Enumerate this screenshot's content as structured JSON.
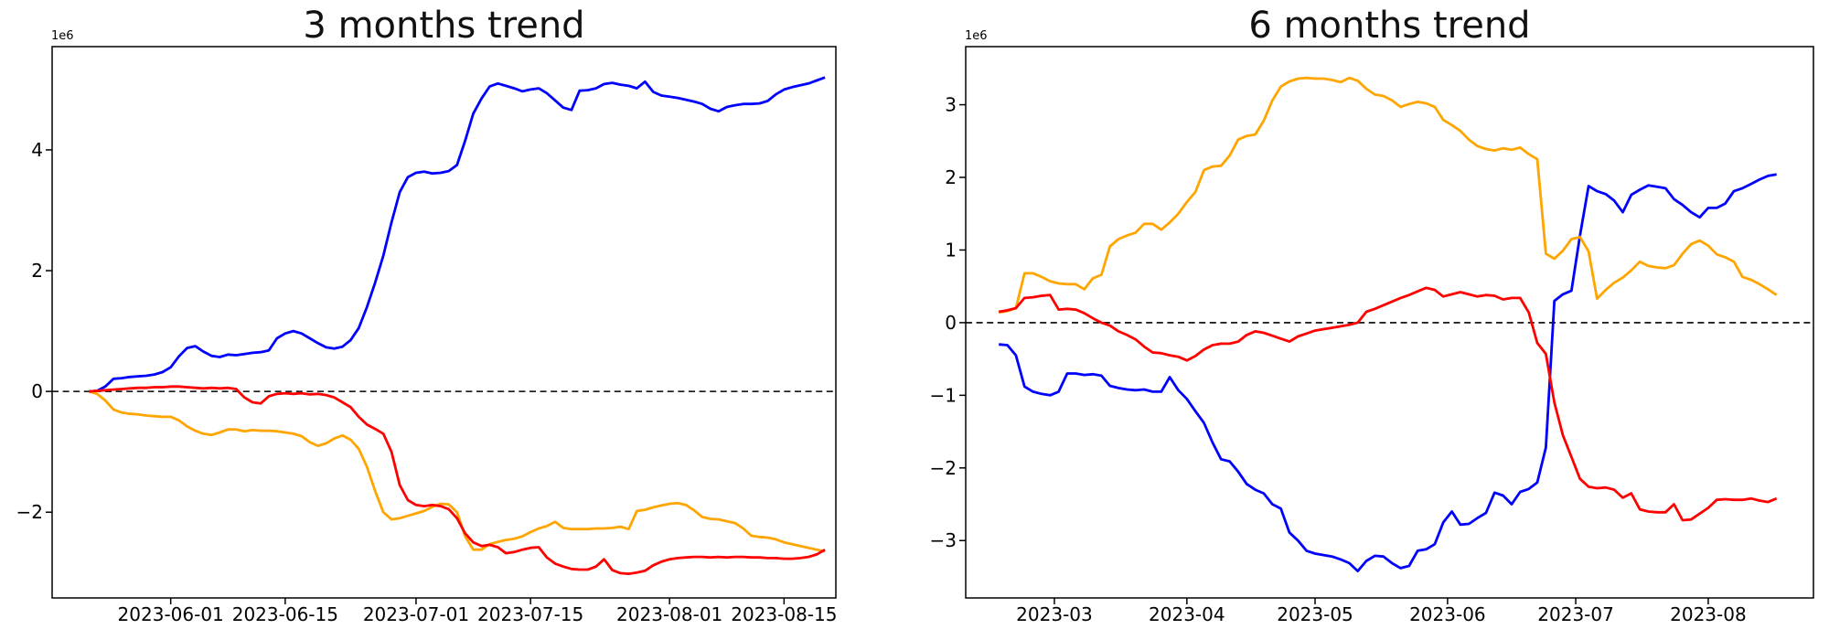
{
  "chart_data": [
    {
      "type": "line",
      "title": "3 months trend",
      "offset_label": "1e6",
      "x_unit": "date",
      "start_date": "2023-05-22",
      "step_days": 1,
      "xlim": [
        "2023-05-17T12:00:00Z",
        "2023-08-21T08:00:00Z"
      ],
      "ylim": [
        -3.42,
        5.71
      ],
      "grid": false,
      "legend": "none",
      "zero_line": true,
      "x_ticks": [
        {
          "date": "2023-06-01",
          "label": "2023-06-01"
        },
        {
          "date": "2023-06-15",
          "label": "2023-06-15"
        },
        {
          "date": "2023-07-01",
          "label": "2023-07-01"
        },
        {
          "date": "2023-07-15",
          "label": "2023-07-15"
        },
        {
          "date": "2023-08-01",
          "label": "2023-08-01"
        },
        {
          "date": "2023-08-15",
          "label": "2023-08-15"
        }
      ],
      "y_ticks": [
        {
          "v": 4,
          "label": "4"
        },
        {
          "v": 2,
          "label": "2"
        },
        {
          "v": 0,
          "label": "0"
        },
        {
          "v": -2,
          "label": "−2"
        }
      ],
      "series": [
        {
          "name": "blue",
          "color": "#0000ff",
          "values": [
            0.0,
            0.01,
            0.08,
            0.21,
            0.22,
            0.24,
            0.25,
            0.26,
            0.28,
            0.32,
            0.4,
            0.58,
            0.72,
            0.75,
            0.66,
            0.59,
            0.57,
            0.61,
            0.6,
            0.62,
            0.64,
            0.65,
            0.68,
            0.88,
            0.96,
            1.0,
            0.96,
            0.88,
            0.8,
            0.73,
            0.71,
            0.74,
            0.85,
            1.05,
            1.4,
            1.8,
            2.25,
            2.8,
            3.3,
            3.55,
            3.62,
            3.64,
            3.61,
            3.62,
            3.65,
            3.75,
            4.15,
            4.6,
            4.85,
            5.05,
            5.1,
            5.06,
            5.02,
            4.97,
            5.0,
            5.02,
            4.94,
            4.82,
            4.7,
            4.66,
            4.98,
            4.99,
            5.02,
            5.09,
            5.11,
            5.08,
            5.06,
            5.02,
            5.13,
            4.96,
            4.9,
            4.88,
            4.86,
            4.83,
            4.8,
            4.76,
            4.68,
            4.64,
            4.71,
            4.74,
            4.76,
            4.76,
            4.77,
            4.81,
            4.92,
            5.0,
            5.04,
            5.07,
            5.1,
            5.15,
            5.2
          ]
        },
        {
          "name": "orange",
          "color": "#ffa500",
          "values": [
            0.0,
            -0.04,
            -0.15,
            -0.3,
            -0.35,
            -0.37,
            -0.38,
            -0.4,
            -0.41,
            -0.42,
            -0.42,
            -0.48,
            -0.58,
            -0.65,
            -0.7,
            -0.72,
            -0.68,
            -0.63,
            -0.63,
            -0.66,
            -0.64,
            -0.65,
            -0.65,
            -0.66,
            -0.68,
            -0.7,
            -0.74,
            -0.84,
            -0.9,
            -0.86,
            -0.78,
            -0.73,
            -0.8,
            -0.95,
            -1.25,
            -1.65,
            -2.0,
            -2.12,
            -2.1,
            -2.06,
            -2.02,
            -1.98,
            -1.91,
            -1.86,
            -1.87,
            -2.0,
            -2.4,
            -2.62,
            -2.62,
            -2.53,
            -2.49,
            -2.46,
            -2.44,
            -2.4,
            -2.33,
            -2.27,
            -2.23,
            -2.16,
            -2.26,
            -2.28,
            -2.28,
            -2.28,
            -2.27,
            -2.27,
            -2.26,
            -2.24,
            -2.28,
            -1.98,
            -1.96,
            -1.92,
            -1.89,
            -1.86,
            -1.85,
            -1.88,
            -1.97,
            -2.08,
            -2.11,
            -2.12,
            -2.15,
            -2.18,
            -2.27,
            -2.39,
            -2.41,
            -2.42,
            -2.45,
            -2.5,
            -2.53,
            -2.56,
            -2.59,
            -2.62,
            -2.65
          ]
        },
        {
          "name": "red",
          "color": "#ff0000",
          "values": [
            0.0,
            0.01,
            0.02,
            0.03,
            0.04,
            0.05,
            0.06,
            0.06,
            0.07,
            0.07,
            0.08,
            0.08,
            0.07,
            0.06,
            0.05,
            0.06,
            0.05,
            0.06,
            0.04,
            -0.1,
            -0.18,
            -0.2,
            -0.08,
            -0.04,
            -0.03,
            -0.04,
            -0.03,
            -0.05,
            -0.04,
            -0.06,
            -0.1,
            -0.18,
            -0.26,
            -0.42,
            -0.55,
            -0.62,
            -0.7,
            -1.0,
            -1.55,
            -1.8,
            -1.88,
            -1.9,
            -1.88,
            -1.9,
            -1.95,
            -2.1,
            -2.35,
            -2.5,
            -2.56,
            -2.54,
            -2.58,
            -2.68,
            -2.66,
            -2.62,
            -2.59,
            -2.58,
            -2.75,
            -2.85,
            -2.9,
            -2.94,
            -2.95,
            -2.95,
            -2.9,
            -2.78,
            -2.96,
            -3.01,
            -3.02,
            -3.0,
            -2.97,
            -2.88,
            -2.82,
            -2.78,
            -2.76,
            -2.75,
            -2.74,
            -2.74,
            -2.75,
            -2.74,
            -2.75,
            -2.74,
            -2.74,
            -2.75,
            -2.75,
            -2.76,
            -2.76,
            -2.77,
            -2.77,
            -2.76,
            -2.74,
            -2.7,
            -2.62
          ]
        }
      ]
    },
    {
      "type": "line",
      "title": "6 months trend",
      "offset_label": "1e6",
      "x_unit": "date",
      "start_date": "2023-02-16",
      "step_days": 2,
      "xlim": [
        "2023-02-08T06:00:00Z",
        "2023-08-25T15:00:00Z"
      ],
      "ylim": [
        -3.79,
        3.8
      ],
      "grid": false,
      "legend": "none",
      "zero_line": true,
      "x_ticks": [
        {
          "date": "2023-03-01",
          "label": "2023-03"
        },
        {
          "date": "2023-04-01",
          "label": "2023-04"
        },
        {
          "date": "2023-05-01",
          "label": "2023-05"
        },
        {
          "date": "2023-06-01",
          "label": "2023-06"
        },
        {
          "date": "2023-07-01",
          "label": "2023-07"
        },
        {
          "date": "2023-08-01",
          "label": "2023-08"
        }
      ],
      "y_ticks": [
        {
          "v": 3,
          "label": "3"
        },
        {
          "v": 2,
          "label": "2"
        },
        {
          "v": 1,
          "label": "1"
        },
        {
          "v": 0,
          "label": "0"
        },
        {
          "v": -1,
          "label": "−1"
        },
        {
          "v": -2,
          "label": "−2"
        },
        {
          "v": -3,
          "label": "−3"
        }
      ],
      "series": [
        {
          "name": "blue",
          "color": "#0000ff",
          "values": [
            -0.3,
            -0.31,
            -0.45,
            -0.88,
            -0.95,
            -0.98,
            -1.0,
            -0.95,
            -0.7,
            -0.7,
            -0.72,
            -0.71,
            -0.73,
            -0.87,
            -0.9,
            -0.92,
            -0.93,
            -0.92,
            -0.95,
            -0.95,
            -0.75,
            -0.93,
            -1.05,
            -1.22,
            -1.38,
            -1.65,
            -1.88,
            -1.91,
            -2.05,
            -2.22,
            -2.3,
            -2.35,
            -2.5,
            -2.56,
            -2.89,
            -3.0,
            -3.14,
            -3.18,
            -3.2,
            -3.22,
            -3.26,
            -3.31,
            -3.42,
            -3.28,
            -3.21,
            -3.22,
            -3.31,
            -3.38,
            -3.35,
            -3.14,
            -3.12,
            -3.05,
            -2.75,
            -2.6,
            -2.78,
            -2.77,
            -2.69,
            -2.62,
            -2.34,
            -2.38,
            -2.5,
            -2.33,
            -2.29,
            -2.2,
            -1.72,
            0.3,
            0.39,
            0.44,
            1.2,
            1.88,
            1.81,
            1.77,
            1.68,
            1.52,
            1.76,
            1.83,
            1.89,
            1.87,
            1.85,
            1.7,
            1.62,
            1.52,
            1.45,
            1.58,
            1.58,
            1.64,
            1.81,
            1.85,
            1.91,
            1.97,
            2.02,
            2.04
          ]
        },
        {
          "name": "orange",
          "color": "#ffa500",
          "values": [
            0.14,
            0.16,
            0.2,
            0.68,
            0.68,
            0.63,
            0.57,
            0.54,
            0.53,
            0.53,
            0.46,
            0.61,
            0.66,
            1.05,
            1.15,
            1.2,
            1.24,
            1.36,
            1.36,
            1.28,
            1.38,
            1.5,
            1.66,
            1.8,
            2.1,
            2.15,
            2.16,
            2.3,
            2.52,
            2.57,
            2.59,
            2.78,
            3.06,
            3.25,
            3.32,
            3.36,
            3.37,
            3.36,
            3.36,
            3.34,
            3.31,
            3.37,
            3.33,
            3.22,
            3.14,
            3.12,
            3.06,
            2.97,
            3.01,
            3.04,
            3.02,
            2.97,
            2.79,
            2.72,
            2.64,
            2.52,
            2.43,
            2.39,
            2.37,
            2.4,
            2.38,
            2.41,
            2.32,
            2.25,
            0.95,
            0.88,
            0.99,
            1.15,
            1.18,
            0.98,
            0.33,
            0.45,
            0.55,
            0.62,
            0.72,
            0.84,
            0.78,
            0.76,
            0.75,
            0.79,
            0.95,
            1.08,
            1.13,
            1.06,
            0.94,
            0.9,
            0.84,
            0.63,
            0.59,
            0.53,
            0.46,
            0.38
          ]
        },
        {
          "name": "red",
          "color": "#ff0000",
          "values": [
            0.15,
            0.17,
            0.2,
            0.34,
            0.35,
            0.37,
            0.38,
            0.18,
            0.19,
            0.18,
            0.13,
            0.06,
            0.0,
            -0.04,
            -0.12,
            -0.17,
            -0.23,
            -0.33,
            -0.41,
            -0.42,
            -0.45,
            -0.47,
            -0.52,
            -0.46,
            -0.37,
            -0.31,
            -0.29,
            -0.29,
            -0.26,
            -0.17,
            -0.12,
            -0.14,
            -0.18,
            -0.22,
            -0.26,
            -0.19,
            -0.15,
            -0.11,
            -0.09,
            -0.07,
            -0.05,
            -0.03,
            0.0,
            0.15,
            0.19,
            0.24,
            0.29,
            0.34,
            0.38,
            0.43,
            0.48,
            0.45,
            0.36,
            0.39,
            0.42,
            0.39,
            0.36,
            0.38,
            0.37,
            0.32,
            0.34,
            0.34,
            0.14,
            -0.28,
            -0.43,
            -1.1,
            -1.55,
            -1.85,
            -2.15,
            -2.26,
            -2.28,
            -2.27,
            -2.3,
            -2.41,
            -2.35,
            -2.57,
            -2.6,
            -2.61,
            -2.61,
            -2.5,
            -2.72,
            -2.71,
            -2.63,
            -2.55,
            -2.44,
            -2.43,
            -2.44,
            -2.44,
            -2.42,
            -2.45,
            -2.47,
            -2.42
          ]
        }
      ]
    }
  ]
}
